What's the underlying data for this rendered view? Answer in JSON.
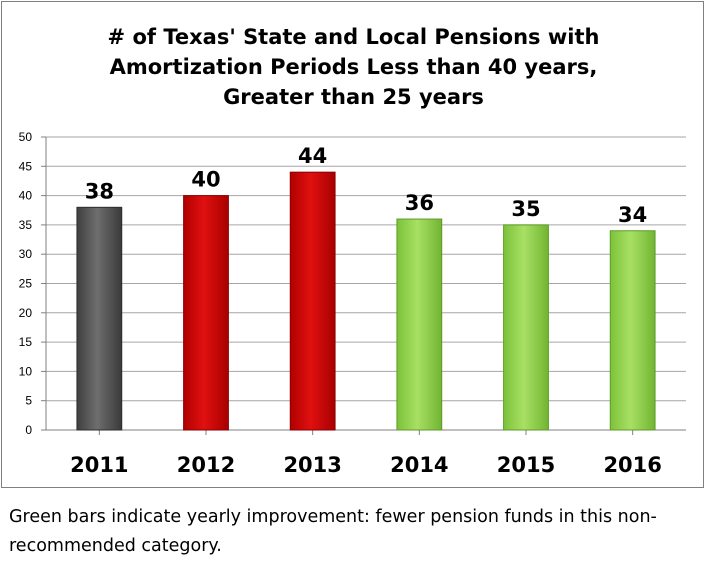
{
  "chart_data": {
    "type": "bar",
    "title": "# of Texas' State and Local Pensions with\nAmortization Periods Less than 40 years,\nGreater than 25 years",
    "categories": [
      "2011",
      "2012",
      "2013",
      "2014",
      "2015",
      "2016"
    ],
    "values": [
      38,
      40,
      44,
      36,
      35,
      34
    ],
    "bar_colors": [
      "#5a5a5a",
      "#cc0000",
      "#cc0000",
      "#92d050",
      "#92d050",
      "#92d050"
    ],
    "ylim": [
      0,
      50
    ],
    "yticks": [
      0,
      5,
      10,
      15,
      20,
      25,
      30,
      35,
      40,
      45,
      50
    ],
    "xlabel": "",
    "ylabel": "",
    "grid": true,
    "legend": "none",
    "data_labels": true
  },
  "caption": "Green bars indicate yearly improvement: fewer pension funds in this non-recommended category."
}
